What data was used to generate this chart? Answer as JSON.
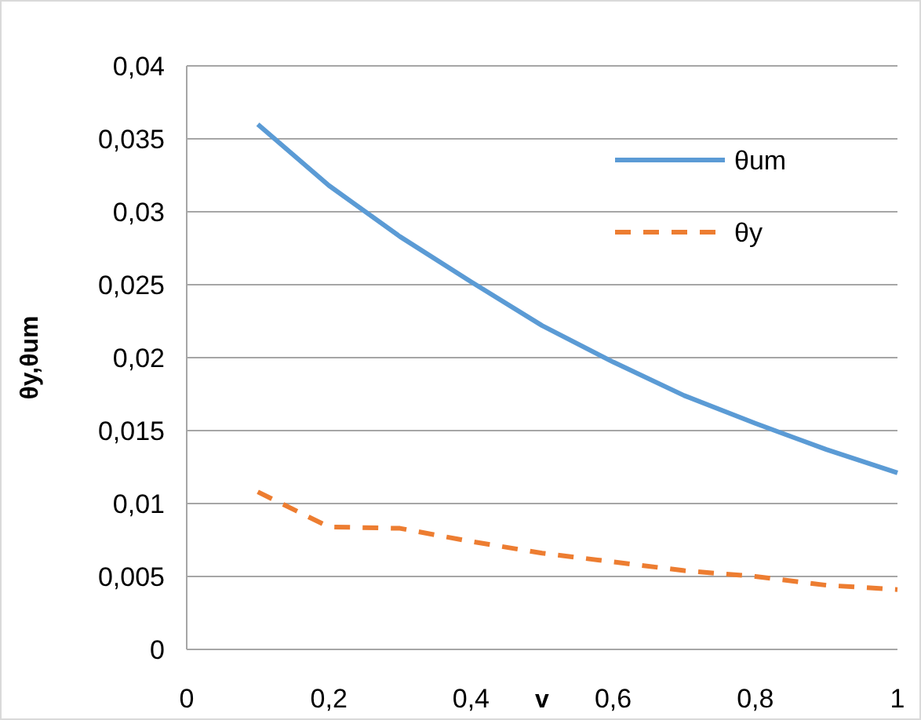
{
  "chart_data": {
    "type": "line",
    "xlabel": "v",
    "ylabel": "θy,θum",
    "x": [
      0.1,
      0.2,
      0.3,
      0.4,
      0.5,
      0.6,
      0.7,
      0.8,
      0.9,
      1.0
    ],
    "series": [
      {
        "name": "θum",
        "color": "#5b9bd5",
        "line_style": "solid",
        "values": [
          0.036,
          0.0318,
          0.0283,
          0.0252,
          0.0222,
          0.0197,
          0.0174,
          0.0155,
          0.0137,
          0.0121
        ]
      },
      {
        "name": "θy",
        "color": "#ed7d31",
        "line_style": "dashed",
        "values": [
          0.0108,
          0.0084,
          0.0083,
          0.0074,
          0.0066,
          0.006,
          0.0054,
          0.005,
          0.0044,
          0.0041
        ]
      }
    ],
    "xlim": [
      0,
      1
    ],
    "xticks": [
      0,
      {
        "value": 0.2,
        "label": "0,2"
      },
      {
        "value": 0.4,
        "label": "0,4"
      },
      {
        "value": 0.6,
        "label": "0,6"
      },
      {
        "value": 0.8,
        "label": "0,8"
      },
      1
    ],
    "ylim": [
      0,
      0.04
    ],
    "yticks": [
      0,
      {
        "value": 0.005,
        "label": "0,005"
      },
      {
        "value": 0.01,
        "label": "0,01"
      },
      {
        "value": 0.015,
        "label": "0,015"
      },
      {
        "value": 0.02,
        "label": "0,02"
      },
      {
        "value": 0.025,
        "label": "0,025"
      },
      {
        "value": 0.03,
        "label": "0,03"
      },
      {
        "value": 0.035,
        "label": "0,035"
      },
      {
        "value": 0.04,
        "label": "0,04"
      }
    ],
    "grid": "y",
    "legend": "top right",
    "marker": "none"
  }
}
